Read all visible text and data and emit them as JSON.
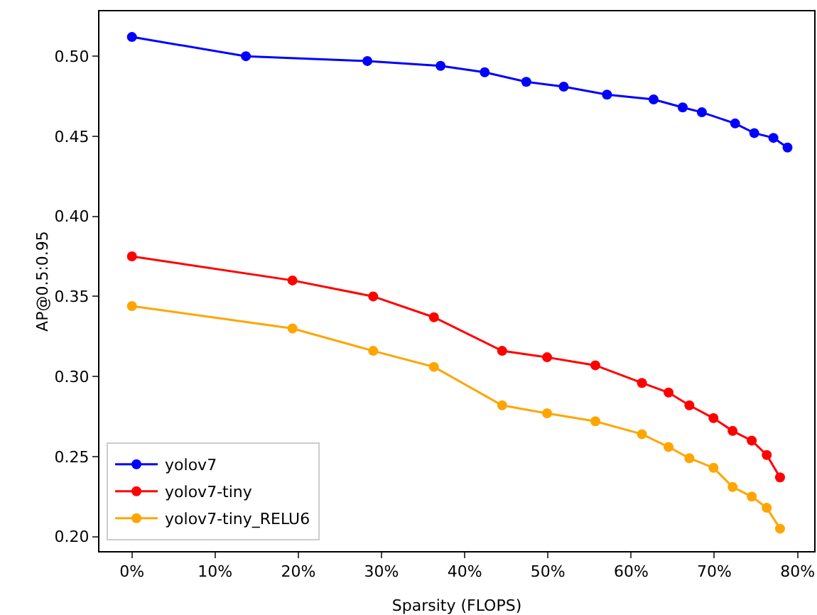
{
  "chart_data": {
    "type": "line",
    "xlabel": "Sparsity (FLOPS)",
    "ylabel": "AP@0.5:0.95",
    "xlim": [
      -3.9,
      82
    ],
    "ylim": [
      0.191,
      0.528
    ],
    "xticks": [
      {
        "value": 0,
        "label": "0%"
      },
      {
        "value": 10,
        "label": "10%"
      },
      {
        "value": 20,
        "label": "20%"
      },
      {
        "value": 30,
        "label": "30%"
      },
      {
        "value": 40,
        "label": "40%"
      },
      {
        "value": 50,
        "label": "50%"
      },
      {
        "value": 60,
        "label": "60%"
      },
      {
        "value": 70,
        "label": "70%"
      },
      {
        "value": 80,
        "label": "80%"
      }
    ],
    "yticks": [
      {
        "value": 0.2,
        "label": "0.20"
      },
      {
        "value": 0.25,
        "label": "0.25"
      },
      {
        "value": 0.3,
        "label": "0.30"
      },
      {
        "value": 0.35,
        "label": "0.35"
      },
      {
        "value": 0.4,
        "label": "0.40"
      },
      {
        "value": 0.45,
        "label": "0.45"
      },
      {
        "value": 0.5,
        "label": "0.50"
      }
    ],
    "marker": "circle",
    "legend": "bottom left",
    "grid": false,
    "series": [
      {
        "name": "yolov7",
        "color": "#0000ff",
        "x": [
          0,
          13.7,
          28.3,
          37.1,
          42.4,
          47.4,
          51.9,
          57.1,
          62.7,
          66.2,
          68.5,
          72.5,
          74.8,
          77.1,
          78.8
        ],
        "values": [
          0.512,
          0.5,
          0.497,
          0.494,
          0.49,
          0.484,
          0.481,
          0.476,
          0.473,
          0.468,
          0.465,
          0.458,
          0.452,
          0.449,
          0.443
        ]
      },
      {
        "name": "yolov7-tiny",
        "color": "#ff0000",
        "x": [
          0,
          19.3,
          29,
          36.3,
          44.5,
          49.9,
          55.7,
          61.3,
          64.5,
          67,
          69.9,
          72.2,
          74.5,
          76.3,
          77.9
        ],
        "values": [
          0.375,
          0.36,
          0.35,
          0.337,
          0.316,
          0.312,
          0.307,
          0.296,
          0.29,
          0.282,
          0.274,
          0.266,
          0.26,
          0.251,
          0.237
        ]
      },
      {
        "name": "yolov7-tiny_RELU6",
        "color": "#ffa500",
        "x": [
          0,
          19.3,
          29,
          36.3,
          44.5,
          49.9,
          55.7,
          61.3,
          64.5,
          67,
          69.9,
          72.2,
          74.5,
          76.3,
          77.9
        ],
        "values": [
          0.344,
          0.33,
          0.316,
          0.306,
          0.282,
          0.277,
          0.272,
          0.264,
          0.256,
          0.249,
          0.243,
          0.231,
          0.225,
          0.218,
          0.205
        ]
      }
    ]
  }
}
